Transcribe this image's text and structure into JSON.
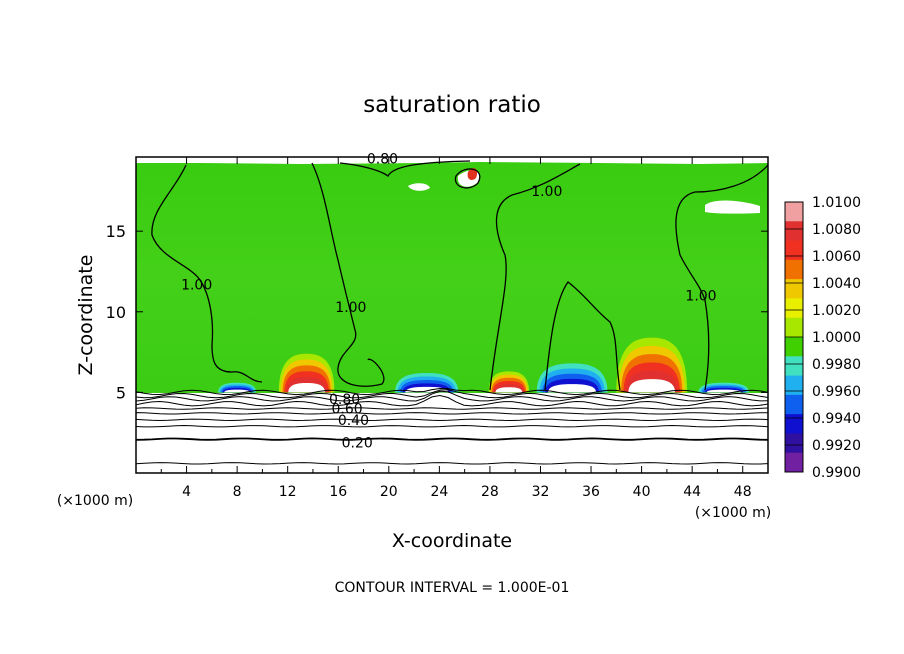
{
  "chart_data": {
    "type": "heatmap",
    "title": "saturation ratio",
    "xlabel": "X-coordinate",
    "ylabel": "Z-coordinate",
    "x_unit_left": "(×1000 m)",
    "x_unit_right": "(×1000 m)",
    "xlim": [
      0,
      50
    ],
    "ylim": [
      0,
      19.6
    ],
    "x_ticks": [
      "4",
      "8",
      "12",
      "16",
      "20",
      "24",
      "28",
      "32",
      "36",
      "40",
      "44",
      "48"
    ],
    "x_tick_values": [
      4,
      8,
      12,
      16,
      20,
      24,
      28,
      32,
      36,
      40,
      44,
      48
    ],
    "y_ticks": [
      "5",
      "10",
      "15"
    ],
    "y_tick_values": [
      5,
      10,
      15
    ],
    "footer": "CONTOUR INTERVAL = 1.000E-01",
    "colorbar": {
      "labels": [
        "1.0100",
        "1.0080",
        "1.0060",
        "1.0040",
        "1.0020",
        "1.0000",
        "0.9980",
        "0.9960",
        "0.9940",
        "0.9920",
        "0.9900"
      ],
      "values": [
        1.01,
        1.008,
        1.006,
        1.004,
        1.002,
        1.0,
        0.998,
        0.996,
        0.994,
        0.992,
        0.99
      ],
      "colors": [
        "#f0a0a0",
        "#e03030",
        "#f03020",
        "#f07000",
        "#f0c800",
        "#e8f000",
        "#a8e800",
        "#40d000",
        "#40e0c0",
        "#20b0f0",
        "#1060f0",
        "#1010d0",
        "#3010a0",
        "#7020a0"
      ]
    },
    "contour_labels": [
      {
        "text": "0.80",
        "x": 19.5,
        "z": 19.5
      },
      {
        "text": "1.00",
        "x": 32.5,
        "z": 17.5
      },
      {
        "text": "1.00",
        "x": 4.8,
        "z": 11.7
      },
      {
        "text": "1.00",
        "x": 17.0,
        "z": 10.3
      },
      {
        "text": "1.00",
        "x": 44.7,
        "z": 11.0
      },
      {
        "text": "0.80",
        "x": 16.5,
        "z": 4.6
      },
      {
        "text": "0.60",
        "x": 16.7,
        "z": 4.0
      },
      {
        "text": "0.40",
        "x": 17.2,
        "z": 3.3
      },
      {
        "text": "0.20",
        "x": 17.5,
        "z": 1.9
      }
    ],
    "lower_contours": [
      0.98,
      0.9,
      0.8,
      0.7,
      0.6,
      0.5,
      0.4,
      0.3,
      0.2,
      0.1
    ],
    "lower_contour_heights": [
      5.0,
      4.8,
      4.6,
      4.3,
      4.0,
      3.7,
      3.3,
      2.9,
      2.1,
      0.6
    ],
    "regions": [
      {
        "label": "supersaturated plume",
        "x_center": 13.5,
        "x_half_width": 2.2,
        "top": 7.4,
        "max": 1.01
      },
      {
        "label": "supersaturated plume",
        "x_center": 29.5,
        "x_half_width": 1.6,
        "top": 6.3,
        "max": 1.006
      },
      {
        "label": "supersaturated plume",
        "x_center": 40.8,
        "x_half_width": 2.8,
        "top": 8.4,
        "max": 1.01
      },
      {
        "label": "subsaturated patch",
        "x_center": 8.0,
        "x_half_width": 1.5,
        "top": 5.6,
        "max": 0.993
      },
      {
        "label": "subsaturated patch",
        "x_center": 23.0,
        "x_half_width": 2.5,
        "top": 6.2,
        "max": 0.991
      },
      {
        "label": "subsaturated patch",
        "x_center": 34.5,
        "x_half_width": 2.8,
        "top": 6.8,
        "max": 0.994
      },
      {
        "label": "subsaturated patch",
        "x_center": 46.5,
        "x_half_width": 2.0,
        "top": 5.6,
        "max": 0.994
      }
    ]
  }
}
